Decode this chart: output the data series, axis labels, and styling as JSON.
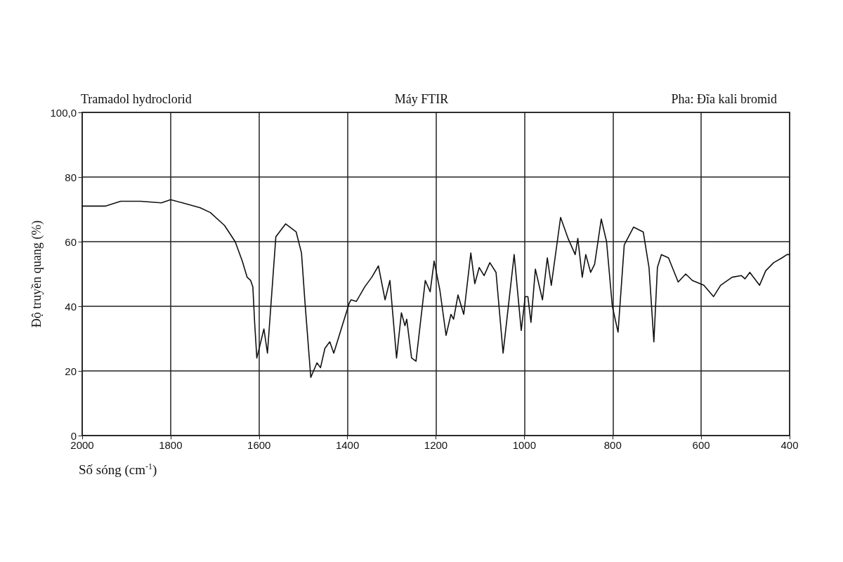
{
  "chart_data": {
    "type": "line",
    "title": "Tramadol hydroclorid",
    "subtitle": "Máy FTIR",
    "annotations": [
      "Pha: Đĩa kali bromid"
    ],
    "xlabel": "Số sóng (cm$^{-1}$)",
    "ylabel": "Độ truyền quang (%)",
    "xlim": [
      2000,
      400
    ],
    "xticks": [
      2000,
      1800,
      1600,
      1400,
      1200,
      1000,
      800,
      600,
      400
    ],
    "ylim": [
      0,
      100
    ],
    "yticks": [
      0,
      20,
      40,
      60,
      80,
      {
        "value": 100,
        "label": "100,0"
      }
    ],
    "grid": true,
    "marker": "none",
    "line_style": "solid",
    "series": [
      {
        "color": "#111111",
        "x": [
          2000,
          1948,
          1913,
          1868,
          1821,
          1800,
          1773,
          1733,
          1710,
          1678,
          1654,
          1638,
          1627,
          1619,
          1614,
          1610,
          1605,
          1589,
          1581,
          1562,
          1540,
          1516,
          1504,
          1496,
          1483,
          1469,
          1461,
          1451,
          1440,
          1431,
          1413,
          1396,
          1392,
          1380,
          1361,
          1345,
          1330,
          1315,
          1304,
          1289,
          1278,
          1270,
          1266,
          1255,
          1245,
          1224,
          1213,
          1204,
          1191,
          1177,
          1166,
          1160,
          1150,
          1137,
          1121,
          1112,
          1102,
          1091,
          1078,
          1064,
          1048,
          1023,
          1007,
          998,
          992,
          985,
          975,
          959,
          948,
          939,
          918,
          901,
          885,
          879,
          869,
          861,
          850,
          841,
          826,
          814,
          801,
          788,
          774,
          753,
          731,
          718,
          707,
          699,
          690,
          674,
          652,
          635,
          620,
          594,
          572,
          556,
          530,
          509,
          501,
          490,
          468,
          454,
          436,
          417,
          406,
          400
        ],
        "values": [
          71,
          71,
          72.5,
          72.5,
          72,
          73,
          72,
          70.5,
          69,
          65,
          60,
          54,
          49,
          48,
          46,
          35,
          24,
          33,
          25.5,
          61.5,
          65.5,
          63,
          56.5,
          41,
          18,
          22.5,
          21,
          27,
          29,
          25.5,
          33.5,
          41,
          42,
          41.5,
          46,
          49,
          52.5,
          42,
          48,
          24,
          38,
          34,
          36,
          24,
          23,
          48,
          44.5,
          54,
          45,
          31,
          37.5,
          36,
          43.5,
          37.5,
          56.5,
          47,
          52,
          49.5,
          53.5,
          50.5,
          25.5,
          56,
          32.5,
          43,
          43,
          35,
          51.5,
          42,
          55,
          46.5,
          67.5,
          61,
          56,
          61,
          49,
          56,
          50.5,
          53,
          67,
          60,
          40,
          32,
          59,
          64.5,
          63,
          52,
          29,
          52,
          56,
          55,
          47.5,
          50,
          48,
          46.5,
          43,
          46.5,
          49,
          49.5,
          48.5,
          50.5,
          46.5,
          51,
          53.5,
          55,
          56,
          56
        ]
      }
    ]
  }
}
